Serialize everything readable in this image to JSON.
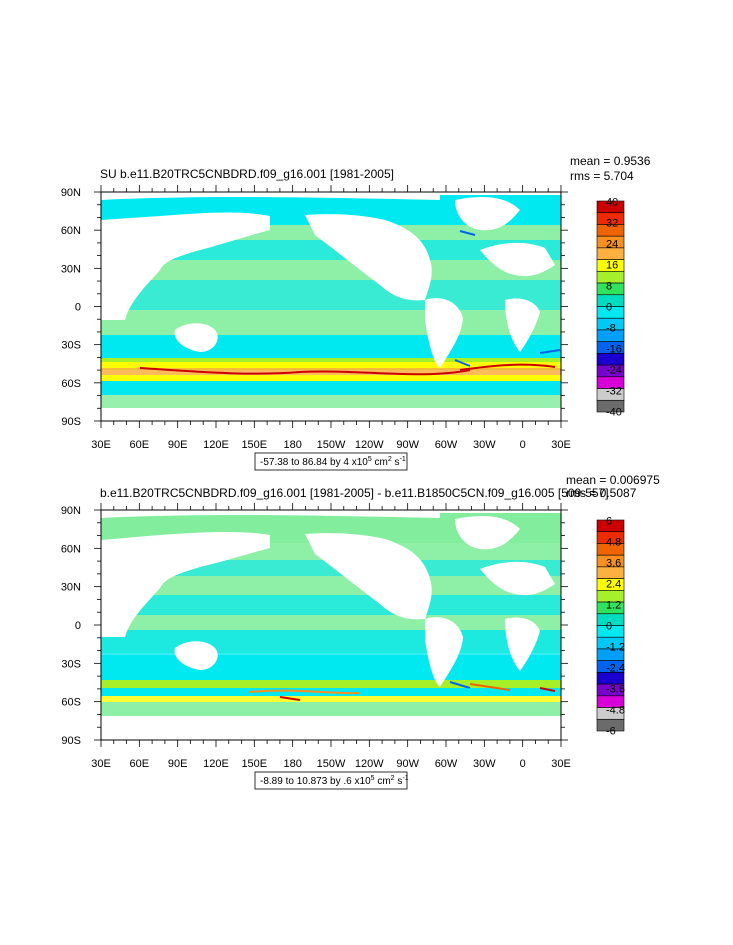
{
  "chart_data": [
    {
      "type": "heatmap",
      "title": "SU b.e11.B20TRC5CNBDRD.f09_g16.001 [1981-2005]",
      "stats": {
        "mean": "mean = 0.9536",
        "rms": "rms = 5.704"
      },
      "x_ticks": [
        "30E",
        "60E",
        "90E",
        "120E",
        "150E",
        "180",
        "150W",
        "120W",
        "90W",
        "60W",
        "30W",
        "0",
        "30E"
      ],
      "y_ticks": [
        "90N",
        "60N",
        "30N",
        "0",
        "30S",
        "60S",
        "90S"
      ],
      "xlim": [
        30,
        390
      ],
      "ylim": [
        -90,
        90
      ],
      "colorbar": {
        "labels": [
          "40",
          "32",
          "24",
          "16",
          "8",
          "0",
          "-8",
          "-16",
          "-24",
          "-32",
          "-40"
        ],
        "colors": [
          "#cc0000",
          "#ee2a00",
          "#f06400",
          "#f89020",
          "#fcb040",
          "#ffff00",
          "#a6f02a",
          "#2fe35c",
          "#00dcc0",
          "#00e8f0",
          "#00c8f8",
          "#00a0f8",
          "#0064f0",
          "#1a00d0",
          "#7a00d0",
          "#d800d8",
          "#cccccc",
          "#6b6b6b"
        ]
      },
      "range_label": {
        "prefix": "-57.38 to 86.84 by 4 x10",
        "exp": "5",
        "unit": " cm",
        "unit_exp": "2",
        "suffix": " s",
        "suffix_exp": "-1"
      }
    },
    {
      "type": "heatmap",
      "title": "b.e11.B20TRC5CNBDRD.f09_g16.001 [1981-2005] - b.e11.B1850C5CN.f09_g16.005 [509-557]",
      "stats": {
        "mean": "mean = 0.006975",
        "rms": "rms = 0.5087"
      },
      "x_ticks": [
        "30E",
        "60E",
        "90E",
        "120E",
        "150E",
        "180",
        "150W",
        "120W",
        "90W",
        "60W",
        "30W",
        "0",
        "30E"
      ],
      "y_ticks": [
        "90N",
        "60N",
        "30N",
        "0",
        "30S",
        "60S",
        "90S"
      ],
      "xlim": [
        30,
        390
      ],
      "ylim": [
        -90,
        90
      ],
      "colorbar": {
        "labels": [
          "6",
          "4.8",
          "3.6",
          "2.4",
          "1.2",
          "0",
          "-1.2",
          "-2.4",
          "-3.6",
          "-4.8",
          "-6"
        ],
        "colors": [
          "#cc0000",
          "#ee2a00",
          "#f06400",
          "#f89020",
          "#fcb040",
          "#ffff00",
          "#a6f02a",
          "#2fe35c",
          "#00dcc0",
          "#00e8f0",
          "#00c8f8",
          "#00a0f8",
          "#0064f0",
          "#1a00d0",
          "#7a00d0",
          "#d800d8",
          "#cccccc",
          "#6b6b6b"
        ]
      },
      "range_label": {
        "prefix": "-8.89 to 10.873 by .6 x10",
        "exp": "5",
        "unit": " cm",
        "unit_exp": "2",
        "suffix": " s",
        "suffix_exp": "-1"
      }
    }
  ]
}
